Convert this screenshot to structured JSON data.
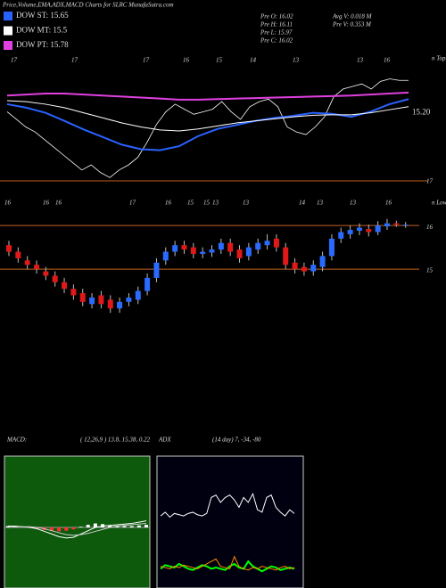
{
  "header": {
    "title": "Price,Volume,EMA,ADX,MACD Charts for SLRC MunafaSutra.com",
    "legend": [
      {
        "name": "DOW ST: 15.65",
        "color": "#2a62ff"
      },
      {
        "name": "DOW MT: 15.5",
        "color": "#ffffff"
      },
      {
        "name": "DOW PT: 15.78",
        "color": "#e040e0"
      }
    ],
    "info_left": [
      "Pre  O: 16.02",
      "Pre  H: 16.11",
      "Pre  L: 15.97",
      "Pre  C: 16.02"
    ],
    "info_right": [
      "Avg V: 0.018 M",
      "Pre  V: 0.353 M"
    ]
  },
  "chart_data": [
    {
      "type": "ema",
      "top_dates": [
        "17",
        "17",
        "17",
        "16",
        "15",
        "14",
        "13",
        "13",
        "16"
      ],
      "corner_label": "n Tops",
      "level_label": "17",
      "last_label": "15.20",
      "ylim": [
        14.0,
        16.2
      ],
      "series": [
        {
          "name": "DOW ST",
          "color": "#2a62ff",
          "values": [
            15.55,
            15.48,
            15.38,
            15.22,
            15.05,
            14.9,
            14.75,
            14.66,
            14.64,
            14.72,
            14.92,
            15.06,
            15.14,
            15.22,
            15.28,
            15.32,
            15.38,
            15.36,
            15.3,
            15.4,
            15.55,
            15.65
          ]
        },
        {
          "name": "DOW MT",
          "color": "#ffffff",
          "values": [
            15.62,
            15.6,
            15.55,
            15.48,
            15.38,
            15.28,
            15.18,
            15.1,
            15.04,
            15.02,
            15.06,
            15.12,
            15.18,
            15.22,
            15.26,
            15.3,
            15.33,
            15.34,
            15.34,
            15.38,
            15.44,
            15.5
          ]
        },
        {
          "name": "DOW PT",
          "color": "#e040e0",
          "values": [
            15.72,
            15.74,
            15.76,
            15.76,
            15.74,
            15.72,
            15.7,
            15.68,
            15.66,
            15.64,
            15.64,
            15.65,
            15.66,
            15.67,
            15.68,
            15.69,
            15.7,
            15.71,
            15.72,
            15.74,
            15.76,
            15.78
          ]
        }
      ]
    },
    {
      "type": "candlestick",
      "top_dates": [
        "16",
        "16",
        "16",
        "17",
        "16",
        "15",
        "15",
        "13",
        "13",
        "14",
        "13",
        "13",
        "16"
      ],
      "corner_label": "n Lows",
      "ylim": [
        13.9,
        16.35
      ],
      "yticks": [
        16,
        15
      ],
      "open": [
        15.55,
        15.4,
        15.2,
        15.1,
        14.95,
        14.85,
        14.7,
        14.55,
        14.45,
        14.2,
        14.4,
        14.3,
        14.1,
        14.25,
        14.3,
        14.5,
        14.8,
        15.2,
        15.4,
        15.55,
        15.5,
        15.35,
        15.38,
        15.45,
        15.6,
        15.45,
        15.3,
        15.45,
        15.55,
        15.7,
        15.5,
        15.15,
        15.05,
        14.95,
        15.05,
        15.3,
        15.7,
        15.8,
        15.88,
        15.92,
        15.85,
        15.98,
        16.05,
        16.0
      ],
      "high": [
        15.65,
        15.5,
        15.3,
        15.2,
        15.05,
        14.95,
        14.8,
        14.65,
        14.55,
        14.45,
        14.5,
        14.4,
        14.35,
        14.45,
        14.6,
        14.9,
        15.25,
        15.5,
        15.65,
        15.65,
        15.6,
        15.5,
        15.55,
        15.7,
        15.7,
        15.55,
        15.6,
        15.7,
        15.8,
        15.8,
        15.6,
        15.25,
        15.15,
        15.2,
        15.4,
        15.8,
        15.95,
        16.0,
        16.05,
        16.02,
        16.1,
        16.15,
        16.11,
        16.08
      ],
      "low": [
        15.3,
        15.15,
        15.0,
        14.9,
        14.75,
        14.6,
        14.45,
        14.3,
        14.15,
        14.1,
        14.1,
        14.0,
        14.0,
        14.15,
        14.2,
        14.4,
        14.7,
        15.1,
        15.3,
        15.35,
        15.25,
        15.25,
        15.28,
        15.35,
        15.3,
        15.15,
        15.2,
        15.35,
        15.45,
        15.4,
        15.0,
        14.9,
        14.85,
        14.85,
        14.95,
        15.2,
        15.6,
        15.7,
        15.78,
        15.75,
        15.78,
        15.9,
        15.97,
        15.95
      ],
      "close": [
        15.4,
        15.25,
        15.1,
        15.0,
        14.85,
        14.7,
        14.55,
        14.4,
        14.25,
        14.35,
        14.2,
        14.1,
        14.25,
        14.35,
        14.5,
        14.8,
        15.15,
        15.4,
        15.55,
        15.45,
        15.35,
        15.4,
        15.45,
        15.6,
        15.4,
        15.25,
        15.5,
        15.6,
        15.65,
        15.5,
        15.1,
        15.0,
        14.95,
        15.1,
        15.3,
        15.7,
        15.85,
        15.9,
        15.95,
        15.85,
        16.0,
        16.05,
        16.02,
        16.02
      ]
    },
    {
      "type": "macd",
      "title": "MACD:",
      "params": "( 12,26,9 ) 13.8, 15.38, 0.22",
      "ylim": [
        -1,
        1
      ],
      "series": [
        {
          "name": "MACD",
          "color": "#ffffff",
          "values": [
            0.02,
            0.02,
            0.01,
            0.0,
            -0.02,
            -0.06,
            -0.1,
            -0.14,
            -0.16,
            -0.15,
            -0.1,
            -0.05,
            0.0,
            0.02,
            0.03,
            0.04,
            0.05,
            0.06,
            0.08,
            0.1
          ]
        },
        {
          "name": "Signal",
          "color": "#cccccc",
          "values": [
            0.0,
            0.01,
            0.01,
            0.01,
            0.0,
            -0.02,
            -0.05,
            -0.08,
            -0.11,
            -0.12,
            -0.11,
            -0.09,
            -0.06,
            -0.03,
            0.0,
            0.02,
            0.03,
            0.04,
            0.05,
            0.06
          ]
        }
      ],
      "histogram": [
        0.02,
        0.01,
        0.0,
        -0.01,
        -0.02,
        -0.04,
        -0.05,
        -0.06,
        -0.05,
        -0.03,
        0.01,
        0.04,
        0.06,
        0.05,
        0.03,
        0.02,
        0.02,
        0.02,
        0.03,
        0.04
      ]
    },
    {
      "type": "adx",
      "title": "ADX",
      "params": "(14 day) 7, -34, -80",
      "ylim": [
        0,
        100
      ],
      "series": [
        {
          "name": "ADX",
          "color": "#ffffff",
          "values": [
            55,
            58,
            54,
            57,
            56,
            55,
            57,
            58,
            56,
            55,
            57,
            70,
            72,
            66,
            70,
            72,
            68,
            62,
            70,
            66,
            73,
            60,
            58,
            70,
            72,
            62,
            58,
            55,
            60,
            57
          ]
        },
        {
          "name": "DI+",
          "color": "#00ff00",
          "values": [
            12,
            15,
            14,
            13,
            16,
            14,
            12,
            11,
            13,
            15,
            14,
            12,
            13,
            12,
            11,
            14,
            16,
            13,
            12,
            18,
            14,
            12,
            10,
            12,
            14,
            13,
            11,
            12,
            13,
            12
          ]
        },
        {
          "name": "DI-",
          "color": "#ff8800",
          "values": [
            14,
            13,
            12,
            14,
            13,
            15,
            14,
            13,
            12,
            14,
            16,
            18,
            20,
            14,
            13,
            12,
            22,
            14,
            12,
            11,
            13,
            12,
            14,
            13,
            12,
            11,
            13,
            14,
            12,
            13
          ]
        }
      ]
    }
  ]
}
